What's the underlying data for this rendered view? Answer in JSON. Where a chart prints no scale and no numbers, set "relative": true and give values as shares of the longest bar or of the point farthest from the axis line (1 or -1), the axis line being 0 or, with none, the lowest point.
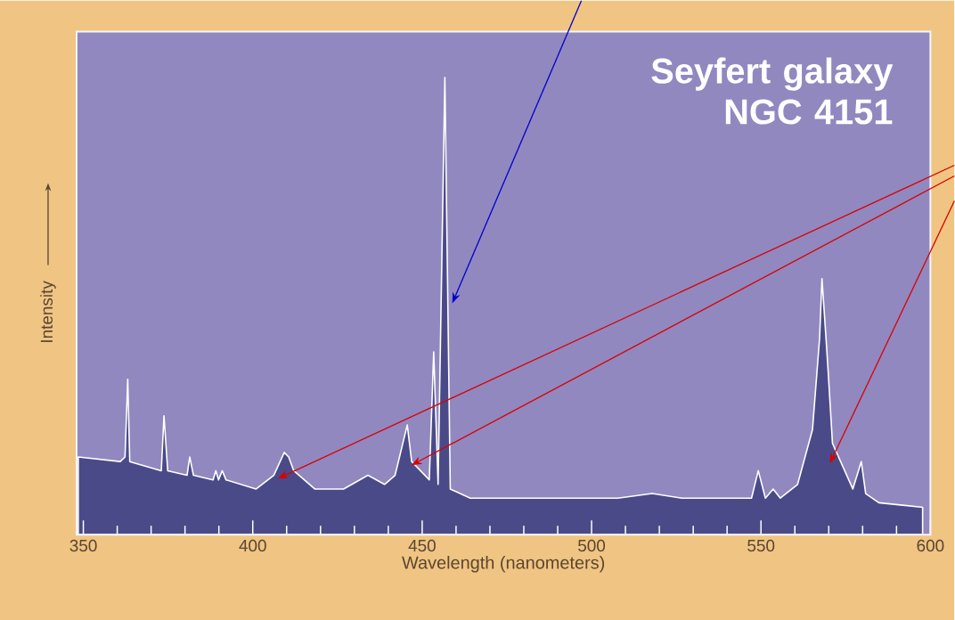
{
  "chart_data": {
    "type": "area",
    "title": "Seyfert galaxy NGC 4151",
    "xlabel": "Wavelength (nanometers)",
    "ylabel": "Intensity",
    "relative": true,
    "color": "#4b4a88",
    "x": [
      348.5,
      360.9,
      362.3,
      363.1,
      363.7,
      373.0,
      373.8,
      374.9,
      380.6,
      381.4,
      382.5,
      388.3,
      389.1,
      389.9,
      391.0,
      392.1,
      401.0,
      406.2,
      409.3,
      410.6,
      412.1,
      418.3,
      426.8,
      434.0,
      438.9,
      442.0,
      445.6,
      446.9,
      452.1,
      453.4,
      454.7,
      456.7,
      458.3,
      464.2,
      488.9,
      507.7,
      517.9,
      526.7,
      534.4,
      547.2,
      549.2,
      551.3,
      553.6,
      555.7,
      560.8,
      565.2,
      567.3,
      568.0,
      569.1,
      569.8,
      571.1,
      577.1,
      579.6,
      580.9,
      584.8,
      597.7
    ],
    "values": [
      0.17,
      0.16,
      0.17,
      0.34,
      0.16,
      0.14,
      0.26,
      0.14,
      0.13,
      0.17,
      0.13,
      0.12,
      0.14,
      0.12,
      0.14,
      0.12,
      0.1,
      0.13,
      0.18,
      0.17,
      0.14,
      0.1,
      0.1,
      0.13,
      0.11,
      0.13,
      0.24,
      0.16,
      0.12,
      0.4,
      0.11,
      1.0,
      0.1,
      0.08,
      0.08,
      0.08,
      0.09,
      0.08,
      0.08,
      0.08,
      0.14,
      0.08,
      0.1,
      0.08,
      0.11,
      0.23,
      0.43,
      0.56,
      0.44,
      0.36,
      0.2,
      0.1,
      0.16,
      0.09,
      0.07,
      0.06
    ],
    "xlim": [
      348,
      600
    ],
    "xticks": [
      350,
      {
        "value": 360,
        "label": null
      },
      {
        "value": 370,
        "label": null
      },
      {
        "value": 380,
        "label": null
      },
      {
        "value": 390,
        "label": null
      },
      400,
      {
        "value": 410,
        "label": null
      },
      {
        "value": 420,
        "label": null
      },
      {
        "value": 430,
        "label": null
      },
      {
        "value": 440,
        "label": null
      },
      450,
      {
        "value": 460,
        "label": null
      },
      {
        "value": 470,
        "label": null
      },
      {
        "value": 480,
        "label": null
      },
      {
        "value": 490,
        "label": null
      },
      500,
      {
        "value": 510,
        "label": null
      },
      {
        "value": 520,
        "label": null
      },
      {
        "value": 530,
        "label": null
      },
      {
        "value": 540,
        "label": null
      },
      550,
      {
        "value": 560,
        "label": null
      },
      {
        "value": 570,
        "label": null
      },
      {
        "value": 580,
        "label": null
      },
      {
        "value": 590,
        "label": null
      },
      600
    ]
  }
}
